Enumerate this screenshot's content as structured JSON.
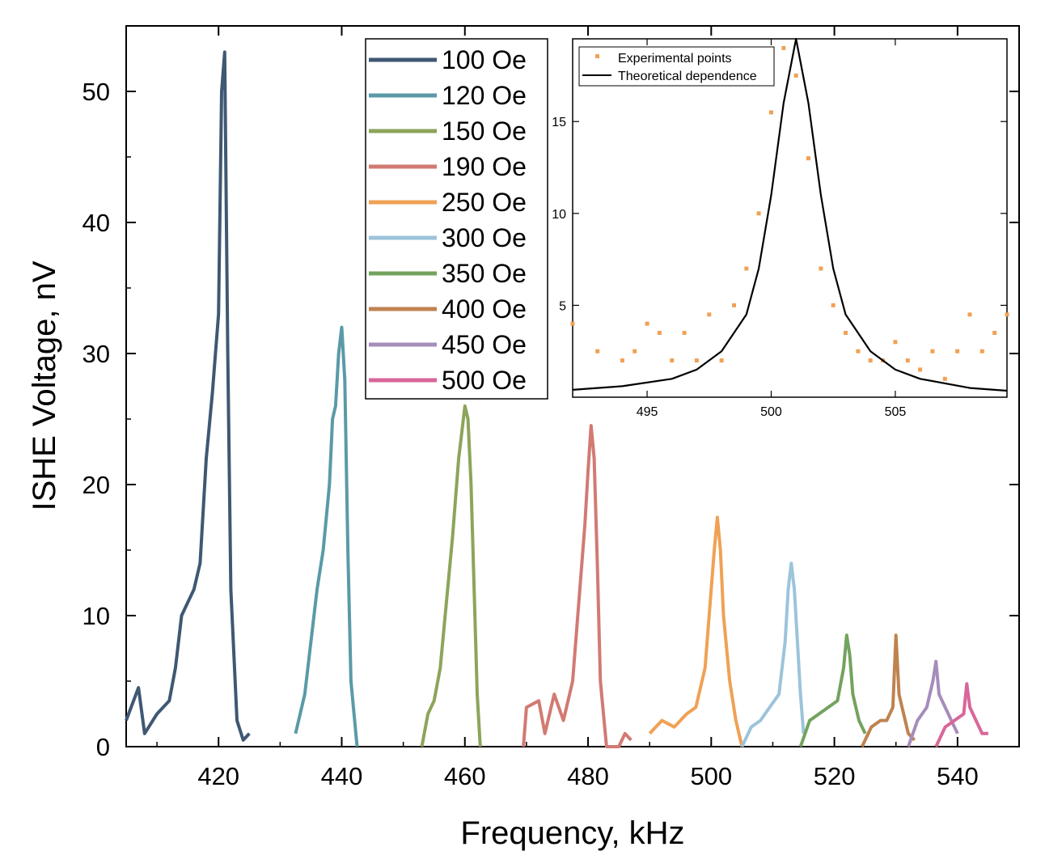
{
  "chart_data": {
    "type": "line",
    "xlabel": "Frequency, kHz",
    "ylabel": "ISHE Voltage, nV",
    "xlim": [
      405,
      550
    ],
    "ylim": [
      0,
      55
    ],
    "xticks": [
      420,
      440,
      460,
      480,
      500,
      520,
      540
    ],
    "yticks": [
      0,
      10,
      20,
      30,
      40,
      50
    ],
    "grid": false,
    "legend_position": "top-center",
    "series": [
      {
        "name": "100 Oe",
        "color": "#3f5873",
        "x": [
          405,
          407,
          408,
          410,
          412,
          413,
          414,
          415,
          416,
          417,
          418,
          419,
          420,
          420.5,
          421,
          421.5,
          422,
          423,
          424,
          425
        ],
        "y": [
          2,
          4.5,
          1,
          2.5,
          3.5,
          6,
          10,
          11,
          12,
          14,
          22,
          27,
          33,
          50,
          53,
          30,
          12,
          2,
          0.5,
          1
        ]
      },
      {
        "name": "120 Oe",
        "color": "#5a9aa8",
        "x": [
          432.5,
          434,
          435,
          436,
          437,
          438,
          438.5,
          439,
          439.5,
          440,
          440.5,
          441,
          441.5,
          442.5
        ],
        "y": [
          1,
          4,
          8,
          12,
          15,
          20,
          25,
          26,
          30,
          32,
          28,
          15,
          5,
          0
        ]
      },
      {
        "name": "150 Oe",
        "color": "#8ca55a",
        "x": [
          453,
          454,
          455,
          456,
          457,
          458,
          459,
          459.5,
          460,
          460.5,
          461,
          461.5,
          462,
          462.5
        ],
        "y": [
          0,
          2.5,
          3.5,
          6,
          11,
          16,
          22,
          24,
          26,
          25,
          20,
          12,
          4,
          0
        ]
      },
      {
        "name": "190 Oe",
        "color": "#d27a72",
        "x": [
          469.5,
          470,
          472,
          473,
          474.5,
          476,
          477.5,
          478.5,
          479.5,
          480,
          480.5,
          481,
          481.5,
          482,
          483,
          485,
          486,
          487
        ],
        "y": [
          0,
          3,
          3.5,
          1,
          4,
          2,
          5,
          11,
          17,
          21,
          24.5,
          22,
          14,
          5,
          0,
          0,
          1,
          0.5
        ]
      },
      {
        "name": "250 Oe",
        "color": "#f0a155",
        "x": [
          490,
          492,
          494,
          496,
          497.5,
          499,
          500,
          500.5,
          501,
          501.5,
          502,
          503,
          504,
          505
        ],
        "y": [
          1,
          2,
          1.5,
          2.5,
          3,
          6,
          12,
          15,
          17.5,
          15,
          10,
          5,
          2,
          0
        ]
      },
      {
        "name": "300 Oe",
        "color": "#9cc4db",
        "x": [
          505,
          506.5,
          508,
          509.5,
          511,
          512,
          512.5,
          513,
          513.5,
          514,
          514.5,
          515
        ],
        "y": [
          0,
          1.5,
          2,
          3,
          4,
          8,
          12,
          14,
          12,
          8,
          4,
          1
        ]
      },
      {
        "name": "350 Oe",
        "color": "#73a35f",
        "x": [
          514.5,
          516,
          517.5,
          519,
          520.5,
          521.5,
          522,
          522.5,
          523,
          524,
          525
        ],
        "y": [
          0,
          2,
          2.5,
          3,
          3.5,
          6,
          8.5,
          7,
          4,
          2,
          1
        ]
      },
      {
        "name": "400 Oe",
        "color": "#bf8350",
        "x": [
          524.5,
          526,
          527.5,
          528.5,
          529.5,
          530,
          530.5,
          531,
          532,
          533
        ],
        "y": [
          0,
          1.5,
          2,
          2,
          3,
          8.5,
          4,
          3,
          1,
          0.5
        ]
      },
      {
        "name": "450 Oe",
        "color": "#a58dbb",
        "x": [
          532,
          533.5,
          535,
          536,
          536.5,
          537,
          538,
          539,
          540
        ],
        "y": [
          0,
          2,
          3,
          5,
          6.5,
          4,
          3,
          2,
          1
        ]
      },
      {
        "name": "500 Oe",
        "color": "#d9669a",
        "x": [
          536.5,
          538,
          539.5,
          541,
          541.5,
          542,
          543,
          544,
          545
        ],
        "y": [
          0,
          1.5,
          2,
          2.5,
          4.8,
          3,
          2,
          1,
          1
        ]
      }
    ],
    "inset": {
      "xlim": [
        492,
        509.5
      ],
      "ylim": [
        0,
        19.5
      ],
      "xticks": [
        495,
        500,
        505
      ],
      "yticks": [
        5,
        10,
        15
      ],
      "legend_position": "top-left",
      "experimental": {
        "name": "Experimental points",
        "color": "#f0a155",
        "x": [
          492,
          493,
          494,
          494.5,
          495,
          495.5,
          496,
          496.5,
          497,
          497.5,
          498,
          498.5,
          499,
          499.5,
          500,
          500.5,
          501,
          501.5,
          502,
          502.5,
          503,
          503.5,
          504,
          504.5,
          505,
          505.5,
          506,
          506.5,
          507,
          507.5,
          508,
          508.5,
          509,
          509.5
        ],
        "y": [
          4,
          2.5,
          2,
          2.5,
          4,
          3.5,
          2,
          3.5,
          2,
          4.5,
          2,
          5,
          7,
          10,
          15.5,
          19,
          17.5,
          13,
          7,
          5,
          3.5,
          2.5,
          2,
          2,
          3,
          2,
          1.5,
          2.5,
          1,
          2.5,
          4.5,
          2.5,
          3.5,
          4.5
        ]
      },
      "theoretical": {
        "name": "Theoretical dependence",
        "color": "#000000",
        "x": [
          492,
          494,
          496,
          497,
          498,
          499,
          499.5,
          500,
          500.5,
          501,
          501.5,
          502,
          502.5,
          503,
          504,
          505,
          506,
          508,
          509.5
        ],
        "y": [
          0.4,
          0.6,
          1,
          1.5,
          2.5,
          4.5,
          7,
          11,
          16,
          19.5,
          16,
          11,
          7,
          4.5,
          2.5,
          1.5,
          1,
          0.5,
          0.35
        ]
      }
    }
  }
}
